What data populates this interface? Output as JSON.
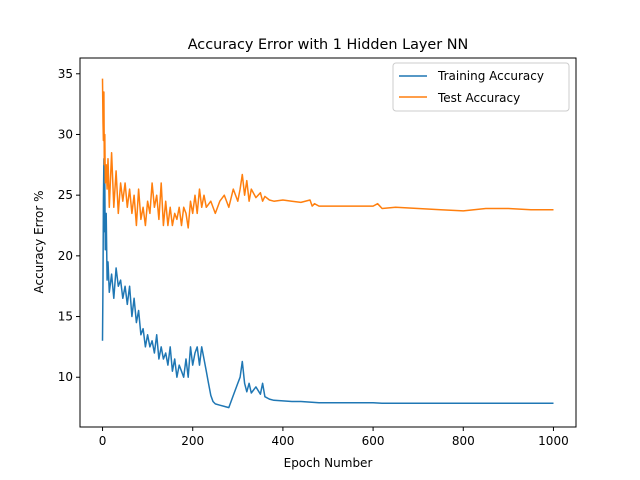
{
  "chart_data": {
    "type": "line",
    "title": "Accuracy Error with 1 Hidden Layer NN",
    "xlabel": "Epoch Number",
    "ylabel": "Accuracy Error %",
    "xlim": [
      -50,
      1050
    ],
    "ylim": [
      5.9,
      36.3
    ],
    "xticks": [
      0,
      200,
      400,
      600,
      800,
      1000
    ],
    "yticks": [
      10,
      15,
      20,
      25,
      30,
      35
    ],
    "grid": false,
    "legend_position": "top-right",
    "series": [
      {
        "name": "Training Accuracy",
        "color": "#1f77b4",
        "x": [
          0,
          1,
          2,
          3,
          4,
          5,
          6,
          8,
          10,
          12,
          15,
          20,
          25,
          30,
          35,
          40,
          45,
          50,
          55,
          60,
          65,
          70,
          75,
          80,
          85,
          90,
          95,
          100,
          105,
          110,
          115,
          120,
          125,
          130,
          135,
          140,
          145,
          150,
          155,
          160,
          165,
          170,
          175,
          180,
          185,
          190,
          195,
          200,
          205,
          210,
          215,
          220,
          225,
          230,
          235,
          240,
          245,
          250,
          260,
          270,
          280,
          290,
          300,
          305,
          310,
          315,
          320,
          325,
          330,
          340,
          350,
          355,
          360,
          370,
          380,
          400,
          420,
          440,
          460,
          480,
          500,
          550,
          600,
          620,
          650,
          700,
          800,
          900,
          1000
        ],
        "y": [
          13.0,
          18.0,
          24.5,
          28.0,
          22.0,
          26.0,
          20.5,
          23.5,
          18.0,
          19.5,
          17.0,
          18.5,
          16.5,
          19.0,
          17.5,
          18.0,
          16.5,
          17.5,
          16.0,
          17.5,
          15.0,
          16.5,
          14.5,
          15.5,
          13.5,
          14.0,
          12.5,
          13.5,
          12.5,
          13.0,
          12.0,
          13.5,
          11.5,
          12.5,
          11.5,
          12.0,
          11.0,
          12.5,
          10.5,
          11.5,
          10.0,
          11.0,
          10.5,
          10.0,
          11.5,
          10.0,
          12.5,
          11.0,
          12.0,
          12.5,
          11.0,
          12.5,
          11.5,
          10.5,
          9.5,
          8.5,
          8.0,
          7.8,
          7.7,
          7.6,
          7.5,
          8.5,
          9.5,
          10.0,
          11.3,
          9.5,
          8.8,
          9.5,
          8.7,
          9.2,
          8.6,
          9.5,
          8.4,
          8.2,
          8.1,
          8.05,
          8.0,
          8.0,
          7.95,
          7.9,
          7.9,
          7.9,
          7.9,
          7.85,
          7.85,
          7.85,
          7.85,
          7.85,
          7.85
        ]
      },
      {
        "name": "Test Accuracy",
        "color": "#ff7f0e",
        "x": [
          0,
          1,
          2,
          3,
          4,
          5,
          6,
          8,
          10,
          12,
          15,
          20,
          25,
          30,
          35,
          40,
          45,
          50,
          55,
          60,
          65,
          70,
          75,
          80,
          85,
          90,
          95,
          100,
          105,
          110,
          115,
          120,
          125,
          130,
          135,
          140,
          145,
          150,
          155,
          160,
          165,
          170,
          175,
          180,
          185,
          190,
          195,
          200,
          205,
          210,
          215,
          220,
          225,
          230,
          240,
          250,
          260,
          270,
          280,
          290,
          300,
          305,
          310,
          315,
          320,
          325,
          330,
          340,
          350,
          355,
          360,
          370,
          380,
          400,
          420,
          440,
          460,
          465,
          470,
          480,
          500,
          550,
          600,
          610,
          620,
          650,
          700,
          750,
          800,
          850,
          900,
          950,
          1000
        ],
        "y": [
          34.6,
          31.0,
          29.5,
          33.5,
          27.5,
          30.0,
          26.0,
          27.5,
          25.5,
          28.0,
          24.0,
          28.5,
          24.0,
          27.0,
          23.5,
          26.0,
          24.5,
          26.0,
          24.0,
          25.5,
          23.5,
          25.0,
          22.5,
          25.5,
          23.0,
          24.0,
          22.5,
          24.5,
          23.5,
          26.0,
          24.0,
          25.0,
          23.0,
          26.0,
          22.5,
          24.5,
          22.5,
          24.0,
          22.5,
          23.5,
          23.0,
          24.0,
          22.5,
          24.0,
          23.5,
          22.3,
          24.5,
          23.5,
          25.0,
          23.5,
          25.5,
          24.0,
          25.0,
          24.0,
          24.5,
          23.5,
          24.5,
          25.0,
          24.0,
          25.5,
          24.5,
          25.5,
          26.7,
          25.0,
          26.2,
          24.5,
          25.5,
          24.8,
          25.2,
          24.5,
          24.9,
          24.6,
          24.5,
          24.6,
          24.5,
          24.4,
          24.6,
          24.1,
          24.3,
          24.1,
          24.1,
          24.1,
          24.1,
          24.3,
          23.9,
          24.0,
          23.9,
          23.8,
          23.7,
          23.9,
          23.9,
          23.8,
          23.8
        ]
      }
    ]
  }
}
